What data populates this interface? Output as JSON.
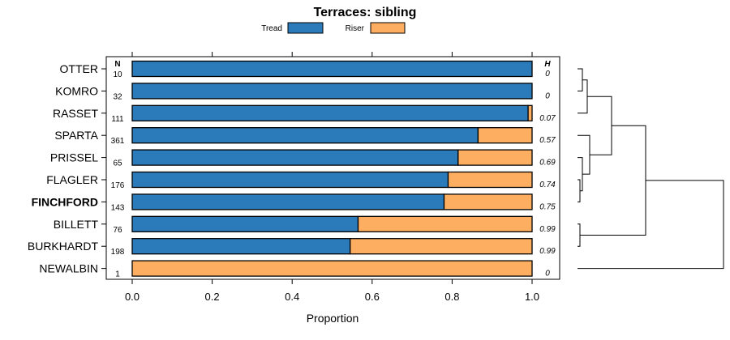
{
  "chart_data": {
    "type": "bar",
    "stacked": true,
    "orientation": "horizontal",
    "title": "Terraces: sibling",
    "xlabel": "Proportion",
    "ylabel": "",
    "xlim": [
      0,
      1
    ],
    "xticks": [
      "0.0",
      "0.2",
      "0.4",
      "0.6",
      "0.8",
      "1.0"
    ],
    "legend": {
      "position": "top",
      "entries": [
        {
          "name": "Tread",
          "color": "#2b7bba"
        },
        {
          "name": "Riser",
          "color": "#fdae61"
        }
      ]
    },
    "n_header": "N",
    "h_header": "H",
    "categories": [
      "OTTER",
      "KOMRO",
      "RASSET",
      "SPARTA",
      "PRISSEL",
      "FLAGLER",
      "FINCHFORD",
      "BILLETT",
      "BURKHARDT",
      "NEWALBIN"
    ],
    "highlight": "FINCHFORD",
    "n": [
      "10",
      "32",
      "111",
      "361",
      "65",
      "176",
      "143",
      "76",
      "198",
      "1"
    ],
    "h": [
      "0",
      "0",
      "0.07",
      "0.57",
      "0.69",
      "0.74",
      "0.75",
      "0.99",
      "0.99",
      "0"
    ],
    "series": [
      {
        "name": "Tread",
        "values": [
          1.0,
          1.0,
          0.99,
          0.865,
          0.815,
          0.79,
          0.78,
          0.565,
          0.545,
          0.0
        ]
      },
      {
        "name": "Riser",
        "values": [
          0.0,
          0.0,
          0.01,
          0.135,
          0.185,
          0.21,
          0.22,
          0.435,
          0.455,
          1.0
        ]
      }
    ],
    "dendrogram": {
      "leaf_order": [
        "OTTER",
        "KOMRO",
        "RASSET",
        "SPARTA",
        "PRISSEL",
        "FLAGLER",
        "FINCHFORD",
        "BILLETT",
        "BURKHARDT",
        "NEWALBIN"
      ],
      "merges": [
        {
          "a": "OTTER",
          "b": "KOMRO",
          "height": 0.02
        },
        {
          "a": "C1",
          "b": "RASSET",
          "height": 0.04
        },
        {
          "a": "FLAGLER",
          "b": "FINCHFORD",
          "height": 0.01
        },
        {
          "a": "PRISSEL",
          "b": "C3",
          "height": 0.02
        },
        {
          "a": "SPARTA",
          "b": "C4",
          "height": 0.05
        },
        {
          "a": "C2",
          "b": "C5",
          "height": 0.14
        },
        {
          "a": "BILLETT",
          "b": "BURKHARDT",
          "height": 0.01
        },
        {
          "a": "C6",
          "b": "C7",
          "height": 0.28
        },
        {
          "a": "C8",
          "b": "NEWALBIN",
          "height": 0.6
        }
      ],
      "max_height": 0.6
    }
  }
}
